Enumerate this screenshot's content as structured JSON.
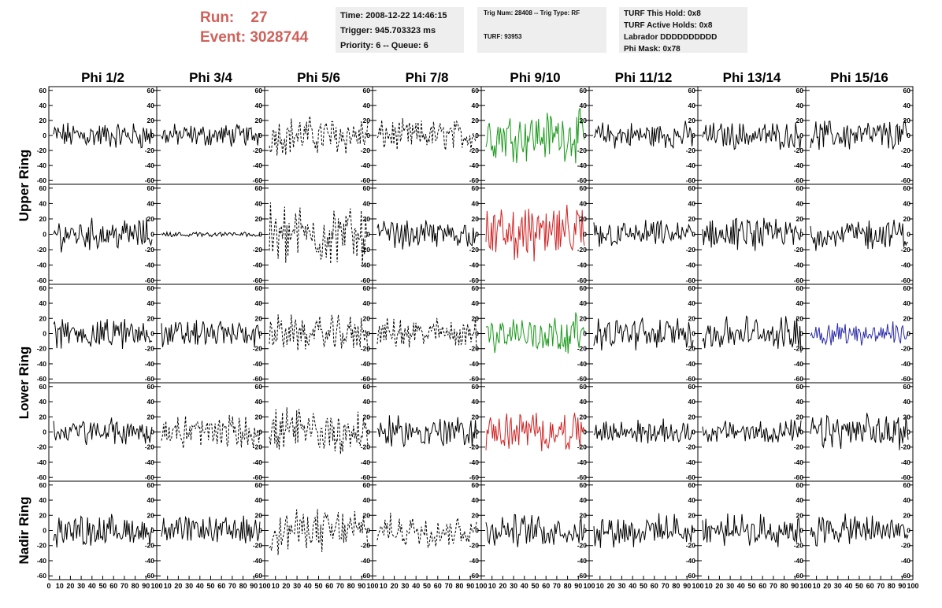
{
  "header": {
    "run_label": "Run:",
    "run_value": "27",
    "event_label": "Event:",
    "event_value": "3028744"
  },
  "info_time": {
    "time": "Time: 2008-12-22 14:46:15",
    "trigger": "Trigger: 945.703323 ms",
    "priority": "Priority: 6 -- Queue: 6"
  },
  "info_trig": {
    "trig": "Trig Num: 28408 -- Trig Type: RF",
    "turf": "TURF: 93953"
  },
  "info_turf": {
    "this_hold": "TURF This Hold: 0x8",
    "active_holds": "TURF Active Holds: 0x8",
    "labrador": "Labrador DDDDDDDDDD",
    "phi_mask": "Phi Mask: 0x78"
  },
  "chart_data": {
    "type": "line",
    "columns": [
      "Phi 1/2",
      "Phi 3/4",
      "Phi 5/6",
      "Phi 7/8",
      "Phi 9/10",
      "Phi 11/12",
      "Phi 13/14",
      "Phi 15/16"
    ],
    "rows": [
      "Upper Ring",
      "Lower Ring",
      "Nadir Ring"
    ],
    "ylim": [
      -65,
      65
    ],
    "yticks": [
      -60,
      -40,
      -20,
      0,
      20,
      40,
      60
    ],
    "xlim": [
      0,
      100
    ],
    "xticks": [
      0,
      10,
      20,
      30,
      40,
      50,
      60,
      70,
      80,
      90,
      100
    ],
    "samples": 90,
    "colors": {
      "default": "#000000",
      "green": "#1a9a1a",
      "red": "#d02020",
      "blue": "#2a2aa8"
    },
    "panels": [
      [
        "solid",
        "solid",
        "dashed",
        "dashed",
        "green",
        "solid",
        "solid",
        "solid"
      ],
      [
        "solid",
        "flat",
        "dashed",
        "solid",
        "red",
        "solid",
        "solid",
        "solid"
      ],
      [
        "solid",
        "solid",
        "dashed",
        "dashed",
        "green",
        "solid",
        "solid",
        "blue"
      ],
      [
        "solid",
        "dashed",
        "dashed",
        "solid",
        "red",
        "solid",
        "solid",
        "solid"
      ],
      [
        "solid",
        "solid",
        "dashed",
        "dashed",
        "solid",
        "solid",
        "solid",
        "solid"
      ]
    ],
    "amplitudes": [
      [
        14,
        12,
        20,
        16,
        26,
        14,
        14,
        16
      ],
      [
        16,
        3,
        30,
        14,
        28,
        14,
        16,
        16
      ],
      [
        16,
        14,
        18,
        16,
        20,
        16,
        18,
        12
      ],
      [
        14,
        18,
        24,
        16,
        20,
        12,
        12,
        18
      ],
      [
        16,
        14,
        22,
        16,
        16,
        16,
        16,
        16
      ]
    ]
  }
}
